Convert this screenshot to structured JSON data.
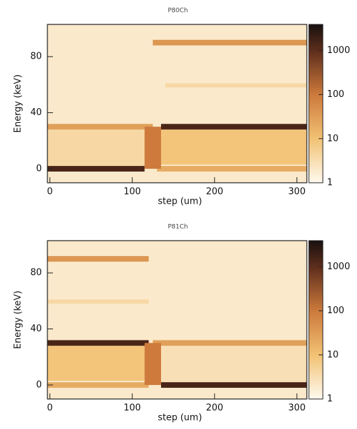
{
  "chart_data": [
    {
      "type": "heatmap",
      "title": "P80Ch",
      "xlabel": "step (um)",
      "ylabel": "Energy (keV)",
      "xlim": [
        -3,
        312
      ],
      "ylim": [
        -10,
        103
      ],
      "xticks": [
        0,
        100,
        200,
        300
      ],
      "yticks": [
        0,
        40,
        80
      ],
      "zlim": [
        1,
        3900
      ],
      "zticks": [
        1,
        10,
        100,
        1000
      ],
      "log_z": true,
      "colormap": [
        {
          "value": 1,
          "color": "#fffaf0"
        },
        {
          "value": 10,
          "color": "#f2c274"
        },
        {
          "value": 100,
          "color": "#cd7a3c"
        },
        {
          "value": 1000,
          "color": "#5e2e1c"
        },
        {
          "value": 3900,
          "color": "#181010"
        }
      ],
      "cells": [
        {
          "x": [
            -3,
            312
          ],
          "y": [
            -10,
            103
          ],
          "value": 2
        },
        {
          "x": [
            -3,
            120
          ],
          "y": [
            2,
            28
          ],
          "value": 4
        },
        {
          "x": [
            135,
            312
          ],
          "y": [
            3,
            28
          ],
          "value": 9
        },
        {
          "x": [
            140,
            312
          ],
          "y": [
            58,
            61
          ],
          "value": 4
        },
        {
          "x": [
            -3,
            115
          ],
          "y": [
            -2,
            2
          ],
          "value": 1500
        },
        {
          "x": [
            130,
            312
          ],
          "y": [
            -2,
            2
          ],
          "value": 20
        },
        {
          "x": [
            -3,
            125
          ],
          "y": [
            28,
            32
          ],
          "value": 30
        },
        {
          "x": [
            135,
            312
          ],
          "y": [
            28,
            32
          ],
          "value": 1500
        },
        {
          "x": [
            115,
            135
          ],
          "y": [
            0,
            30
          ],
          "value": 100
        },
        {
          "x": [
            125,
            312
          ],
          "y": [
            88,
            92
          ],
          "value": 40
        }
      ]
    },
    {
      "type": "heatmap",
      "title": "P81Ch",
      "xlabel": "step (um)",
      "ylabel": "Energy (keV)",
      "xlim": [
        -3,
        312
      ],
      "ylim": [
        -10,
        103
      ],
      "xticks": [
        0,
        100,
        200,
        300
      ],
      "yticks": [
        0,
        40,
        80
      ],
      "zlim": [
        1,
        3900
      ],
      "zticks": [
        1,
        10,
        100,
        1000
      ],
      "log_z": true,
      "colormap": [
        {
          "value": 1,
          "color": "#fffaf0"
        },
        {
          "value": 10,
          "color": "#f2c274"
        },
        {
          "value": 100,
          "color": "#cd7a3c"
        },
        {
          "value": 1000,
          "color": "#5e2e1c"
        },
        {
          "value": 3900,
          "color": "#181010"
        }
      ],
      "cells": [
        {
          "x": [
            -3,
            312
          ],
          "y": [
            -10,
            103
          ],
          "value": 2
        },
        {
          "x": [
            -3,
            115
          ],
          "y": [
            3,
            28
          ],
          "value": 9
        },
        {
          "x": [
            135,
            312
          ],
          "y": [
            2,
            28
          ],
          "value": 3
        },
        {
          "x": [
            -3,
            120
          ],
          "y": [
            58,
            61
          ],
          "value": 4
        },
        {
          "x": [
            -3,
            120
          ],
          "y": [
            -2,
            2
          ],
          "value": 20
        },
        {
          "x": [
            135,
            312
          ],
          "y": [
            -2,
            2
          ],
          "value": 1500
        },
        {
          "x": [
            -3,
            120
          ],
          "y": [
            28,
            32
          ],
          "value": 1500
        },
        {
          "x": [
            125,
            312
          ],
          "y": [
            28,
            32
          ],
          "value": 30
        },
        {
          "x": [
            115,
            135
          ],
          "y": [
            0,
            30
          ],
          "value": 100
        },
        {
          "x": [
            -3,
            120
          ],
          "y": [
            88,
            92
          ],
          "value": 40
        }
      ]
    }
  ]
}
